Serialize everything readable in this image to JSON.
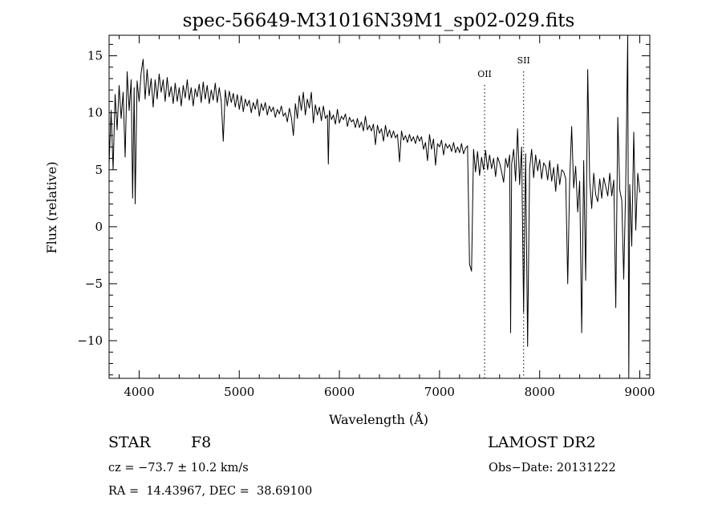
{
  "chart_data": {
    "type": "line",
    "title": "spec-56649-M31016N39M1_sp02-029.fits",
    "xlabel": "Wavelength (Å)",
    "ylabel": "Flux (relative)",
    "xlim": [
      3700,
      9100
    ],
    "ylim": [
      -13.3,
      16.8
    ],
    "x_ticks": [
      4000,
      5000,
      6000,
      7000,
      8000,
      9000
    ],
    "y_ticks": [
      -10,
      -5,
      0,
      5,
      10,
      15
    ],
    "x_tick_labels": [
      "4000",
      "5000",
      "6000",
      "7000",
      "8000",
      "9000"
    ],
    "y_tick_labels": [
      "−10",
      "−5",
      "0",
      "5",
      "10",
      "15"
    ],
    "grid": false,
    "line_color": "#000000",
    "lines": [
      {
        "label": "OII",
        "x": 7450
      },
      {
        "label": "SII",
        "x": 7840
      }
    ],
    "series": [
      {
        "x": [
          3700,
          3720,
          3740,
          3760,
          3780,
          3800,
          3820,
          3840,
          3860,
          3880,
          3900,
          3920,
          3935,
          3950,
          3960,
          3980,
          4000,
          4020,
          4040,
          4060,
          4080,
          4100,
          4120,
          4140,
          4160,
          4180,
          4200,
          4220,
          4240,
          4260,
          4280,
          4300,
          4320,
          4340,
          4360,
          4380,
          4400,
          4420,
          4440,
          4460,
          4480,
          4500,
          4520,
          4540,
          4560,
          4580,
          4600,
          4620,
          4640,
          4660,
          4680,
          4700,
          4720,
          4740,
          4760,
          4780,
          4800,
          4820,
          4840,
          4860,
          4880,
          4900,
          4920,
          4940,
          4960,
          4980,
          5000,
          5020,
          5040,
          5060,
          5080,
          5100,
          5120,
          5140,
          5160,
          5180,
          5200,
          5220,
          5240,
          5260,
          5280,
          5300,
          5320,
          5340,
          5360,
          5380,
          5400,
          5420,
          5440,
          5460,
          5480,
          5500,
          5520,
          5540,
          5560,
          5580,
          5600,
          5620,
          5640,
          5660,
          5680,
          5700,
          5720,
          5740,
          5760,
          5780,
          5800,
          5820,
          5840,
          5860,
          5880,
          5890,
          5900,
          5920,
          5940,
          5960,
          5980,
          6000,
          6020,
          6040,
          6060,
          6080,
          6100,
          6120,
          6140,
          6160,
          6180,
          6200,
          6220,
          6240,
          6260,
          6280,
          6300,
          6320,
          6340,
          6360,
          6380,
          6400,
          6420,
          6440,
          6460,
          6480,
          6500,
          6520,
          6540,
          6560,
          6580,
          6600,
          6620,
          6640,
          6660,
          6680,
          6700,
          6720,
          6740,
          6760,
          6780,
          6800,
          6820,
          6840,
          6860,
          6880,
          6900,
          6920,
          6940,
          6960,
          6980,
          7000,
          7020,
          7040,
          7060,
          7080,
          7100,
          7120,
          7140,
          7160,
          7180,
          7200,
          7220,
          7240,
          7260,
          7280,
          7300,
          7320,
          7340,
          7360,
          7380,
          7400,
          7420,
          7440,
          7460,
          7480,
          7500,
          7520,
          7540,
          7560,
          7580,
          7600,
          7620,
          7640,
          7660,
          7680,
          7700,
          7710,
          7720,
          7740,
          7760,
          7780,
          7800,
          7820,
          7840,
          7860,
          7880,
          7900,
          7920,
          7940,
          7960,
          7980,
          8000,
          8020,
          8040,
          8060,
          8080,
          8100,
          8120,
          8140,
          8160,
          8180,
          8200,
          8220,
          8240,
          8260,
          8280,
          8300,
          8320,
          8340,
          8360,
          8380,
          8400,
          8420,
          8440,
          8460,
          8480,
          8500,
          8520,
          8540,
          8560,
          8580,
          8600,
          8620,
          8640,
          8660,
          8680,
          8700,
          8720,
          8740,
          8760,
          8780,
          8800,
          8820,
          8840,
          8860,
          8880,
          8890,
          8900,
          8920,
          8940,
          8960,
          8980,
          9000
        ],
        "values": [
          5.5,
          10.2,
          5.0,
          11.6,
          8.5,
          12.4,
          9.5,
          11.8,
          6.1,
          13.6,
          10.2,
          12.9,
          2.5,
          12.2,
          2.0,
          12.8,
          11.0,
          13.5,
          14.7,
          11.2,
          13.8,
          11.5,
          13.0,
          10.5,
          12.9,
          11.2,
          13.4,
          11.8,
          12.9,
          11.0,
          13.1,
          11.4,
          12.3,
          10.8,
          12.6,
          11.0,
          12.2,
          10.6,
          12.4,
          11.3,
          12.9,
          11.1,
          12.2,
          10.6,
          12.1,
          11.4,
          12.5,
          10.9,
          12.7,
          11.2,
          12.4,
          10.8,
          12.0,
          11.1,
          12.6,
          10.9,
          12.2,
          11.0,
          7.5,
          12.0,
          10.6,
          11.9,
          10.9,
          11.7,
          10.5,
          11.6,
          10.3,
          11.5,
          10.1,
          11.2,
          10.6,
          11.1,
          10.0,
          10.9,
          10.3,
          11.2,
          9.7,
          10.8,
          10.2,
          10.9,
          9.8,
          10.6,
          10.1,
          10.5,
          9.6,
          10.3,
          9.9,
          10.6,
          9.7,
          10.0,
          9.2,
          10.4,
          9.6,
          8.0,
          10.8,
          9.5,
          11.5,
          10.2,
          11.8,
          9.8,
          11.2,
          10.4,
          11.8,
          9.1,
          10.7,
          9.8,
          10.5,
          9.3,
          10.6,
          9.5,
          9.8,
          5.5,
          10.2,
          9.4,
          9.8,
          9.0,
          10.3,
          9.1,
          9.7,
          9.4,
          9.9,
          8.8,
          9.6,
          9.2,
          9.4,
          8.7,
          9.5,
          8.7,
          9.2,
          8.4,
          9.7,
          8.5,
          8.9,
          8.4,
          9.0,
          7.2,
          8.9,
          8.2,
          8.6,
          7.5,
          8.9,
          7.9,
          8.5,
          7.8,
          8.4,
          7.8,
          8.1,
          5.7,
          8.4,
          7.6,
          8.0,
          7.4,
          8.1,
          7.5,
          7.9,
          7.3,
          8.0,
          7.5,
          7.9,
          6.8,
          7.4,
          5.8,
          8.1,
          6.8,
          7.7,
          5.4,
          7.3,
          7.0,
          7.6,
          6.3,
          7.3,
          6.9,
          7.2,
          6.6,
          7.4,
          6.5,
          7.0,
          6.5,
          7.3,
          6.4,
          6.9,
          7.1,
          -3.3,
          -3.9,
          6.8,
          4.8,
          6.6,
          4.5,
          6.1,
          5.0,
          6.7,
          5.0,
          6.3,
          5.1,
          6.0,
          4.4,
          6.1,
          5.6,
          4.8,
          3.9,
          6.0,
          5.2,
          6.3,
          -9.3,
          5.5,
          6.8,
          4.0,
          8.6,
          3.7,
          7.0,
          -7.5,
          6.4,
          -10.5,
          5.1,
          6.8,
          4.3,
          6.3,
          4.9,
          5.9,
          4.2,
          5.6,
          5.3,
          4.1,
          5.8,
          4.0,
          5.2,
          3.1,
          5.5,
          3.7,
          5.0,
          4.8,
          4.2,
          -5.0,
          4.0,
          8.8,
          3.4,
          5.3,
          1.3,
          4.0,
          -9.3,
          5.8,
          -4.7,
          13.8,
          4.0,
          1.6,
          4.7,
          2.8,
          2.2,
          4.2,
          2.5,
          4.3,
          3.5,
          2.7,
          4.7,
          2.7,
          4.1,
          -7.1,
          9.6,
          3.2,
          2.3,
          -4.6,
          3.7,
          16.8,
          -13.3,
          3.7,
          -1.7,
          8.3,
          -0.3,
          4.7,
          3.0
        ]
      }
    ]
  },
  "info": {
    "class_label": "STAR",
    "subclass": "F8",
    "survey": "LAMOST DR2",
    "cz": "cz = −73.7 ± 10.2 km/s",
    "obs_date": "Obs−Date: 20131222",
    "coords": "RA =  14.43967, DEC =  38.69100"
  }
}
